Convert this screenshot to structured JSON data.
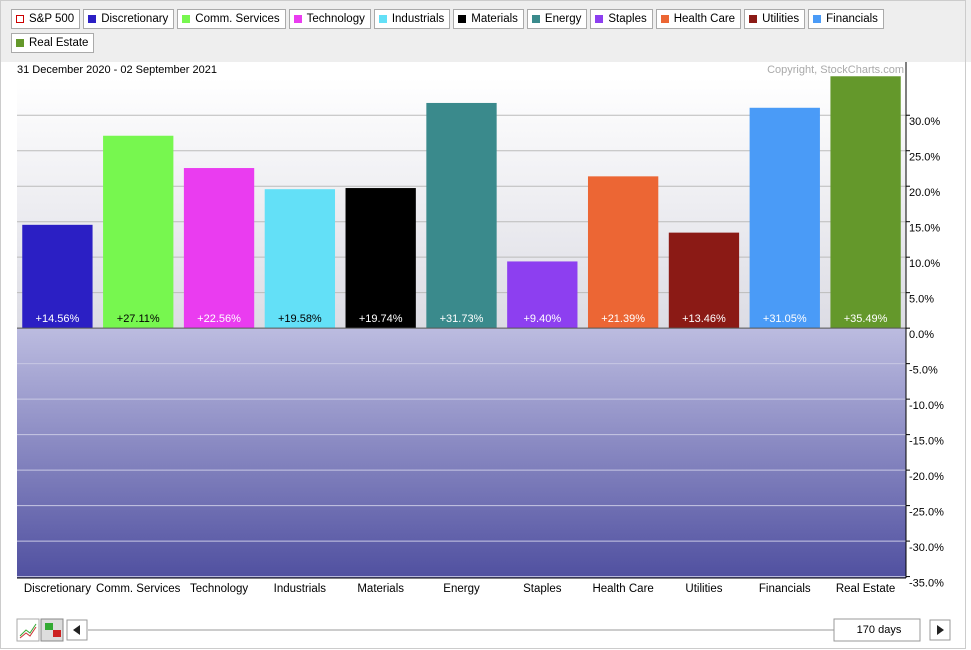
{
  "chart_data": {
    "type": "bar",
    "subtitle": "31 December 2020 - 02 September 2021",
    "copyright": "Copyright, StockCharts.com",
    "period": "170 days",
    "legend": [
      {
        "name": "S&P 500",
        "color": "#cc0000",
        "hollow": true
      },
      {
        "name": "Discretionary",
        "color": "#2b1fc4"
      },
      {
        "name": "Comm. Services",
        "color": "#77f74f"
      },
      {
        "name": "Technology",
        "color": "#ea3cf0"
      },
      {
        "name": "Industrials",
        "color": "#63e0f7"
      },
      {
        "name": "Materials",
        "color": "#000000"
      },
      {
        "name": "Energy",
        "color": "#3a8a8c"
      },
      {
        "name": "Staples",
        "color": "#8d3ff0"
      },
      {
        "name": "Health Care",
        "color": "#ec6634"
      },
      {
        "name": "Utilities",
        "color": "#8b1a15"
      },
      {
        "name": "Financials",
        "color": "#4a9bf7"
      },
      {
        "name": "Real Estate",
        "color": "#64982b"
      }
    ],
    "categories": [
      "Discretionary",
      "Comm. Services",
      "Technology",
      "Industrials",
      "Materials",
      "Energy",
      "Staples",
      "Health Care",
      "Utilities",
      "Financials",
      "Real Estate"
    ],
    "values": [
      14.56,
      27.11,
      22.56,
      19.58,
      19.74,
      31.73,
      9.4,
      21.39,
      13.46,
      31.05,
      35.49
    ],
    "value_labels": [
      "+14.56%",
      "+27.11%",
      "+22.56%",
      "+19.58%",
      "+19.74%",
      "+31.73%",
      "+9.40%",
      "+21.39%",
      "+13.46%",
      "+31.05%",
      "+35.49%"
    ],
    "colors": [
      "#2b1fc4",
      "#77f74f",
      "#ea3cf0",
      "#63e0f7",
      "#000000",
      "#3a8a8c",
      "#8d3ff0",
      "#ec6634",
      "#8b1a15",
      "#4a9bf7",
      "#64982b"
    ],
    "ylim": [
      -35.2,
      37.5
    ],
    "yticks": [
      {
        "value": 30,
        "label": "30.0%"
      },
      {
        "value": 25,
        "label": "25.0%"
      },
      {
        "value": 20,
        "label": "20.0%"
      },
      {
        "value": 15,
        "label": "15.0%"
      },
      {
        "value": 10,
        "label": "10.0%"
      },
      {
        "value": 5,
        "label": "5.0%"
      },
      {
        "value": 0,
        "label": "0.0%"
      },
      {
        "value": -5,
        "label": "-5.0%"
      },
      {
        "value": -10,
        "label": "-10.0%"
      },
      {
        "value": -15,
        "label": "-15.0%"
      },
      {
        "value": -20,
        "label": "-20.0%"
      },
      {
        "value": -25,
        "label": "-25.0%"
      },
      {
        "value": -30,
        "label": "-30.0%"
      },
      {
        "value": -35,
        "label": "-35.0%"
      }
    ],
    "grid": true
  }
}
